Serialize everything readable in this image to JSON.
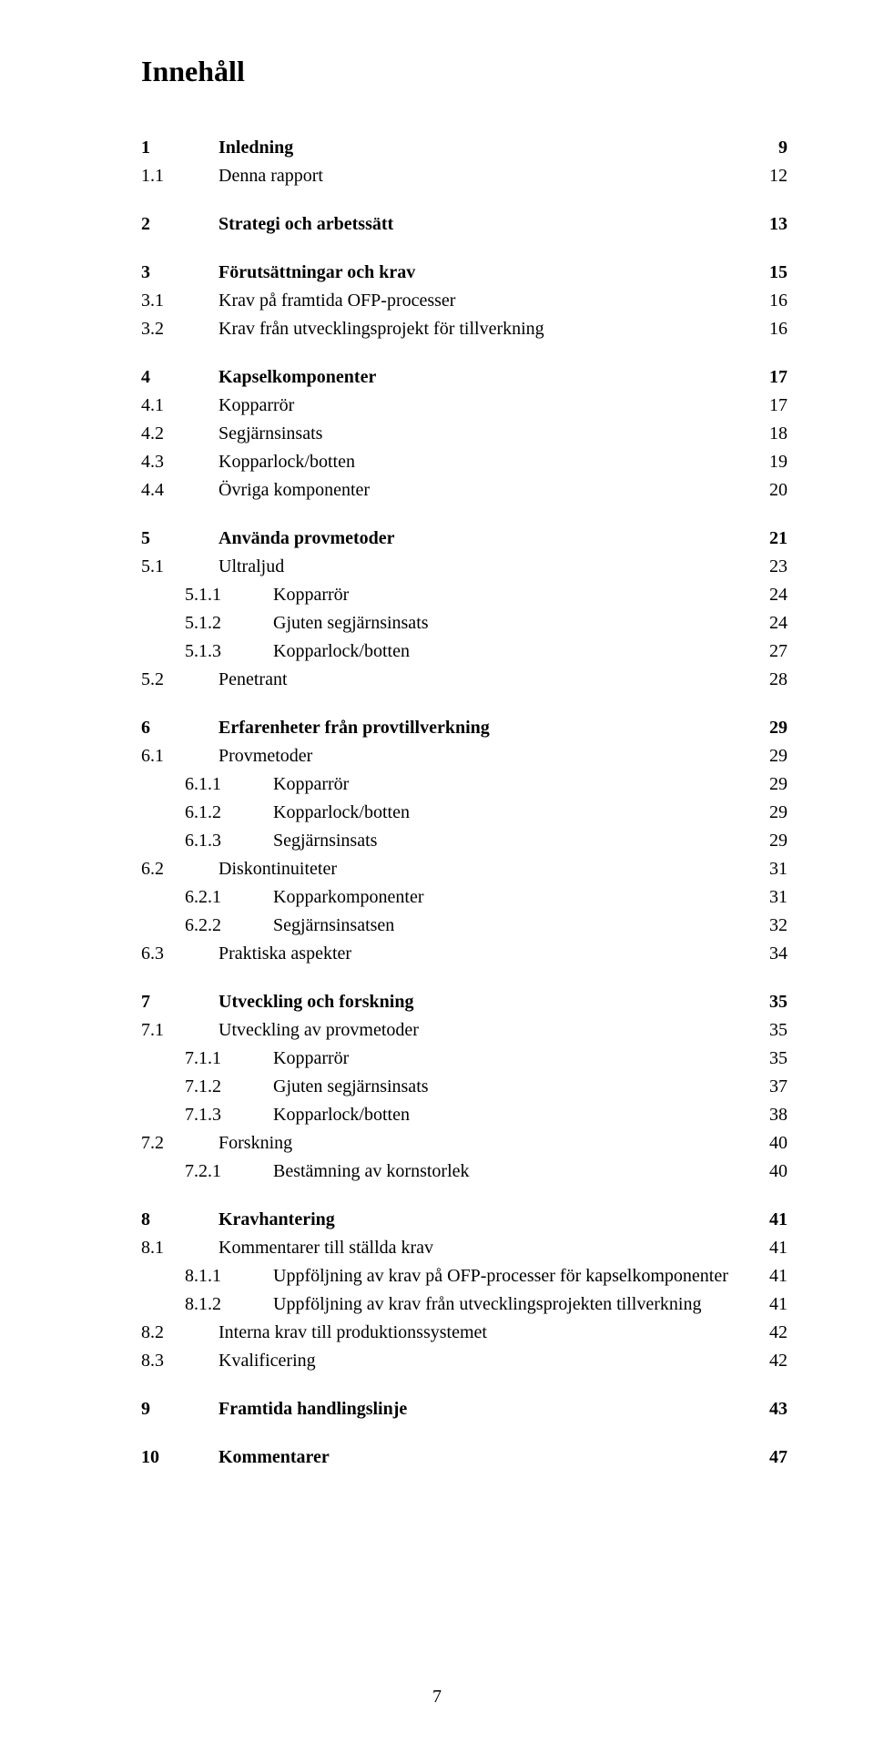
{
  "title": "Innehåll",
  "page_number": "7",
  "sections": [
    {
      "entries": [
        {
          "num": "1",
          "title": "Inledning",
          "page": "9",
          "bold": true,
          "indent": 0
        },
        {
          "num": "1.1",
          "title": "Denna rapport",
          "page": "12",
          "bold": false,
          "indent": 1
        }
      ]
    },
    {
      "entries": [
        {
          "num": "2",
          "title": "Strategi och arbetssätt",
          "page": "13",
          "bold": true,
          "indent": 0
        }
      ]
    },
    {
      "entries": [
        {
          "num": "3",
          "title": "Förutsättningar och krav",
          "page": "15",
          "bold": true,
          "indent": 0
        },
        {
          "num": "3.1",
          "title": "Krav på framtida OFP-processer",
          "page": "16",
          "bold": false,
          "indent": 1
        },
        {
          "num": "3.2",
          "title": "Krav från utvecklingsprojekt för tillverkning",
          "page": "16",
          "bold": false,
          "indent": 1
        }
      ]
    },
    {
      "entries": [
        {
          "num": "4",
          "title": "Kapselkomponenter",
          "page": "17",
          "bold": true,
          "indent": 0
        },
        {
          "num": "4.1",
          "title": "Kopparrör",
          "page": "17",
          "bold": false,
          "indent": 1
        },
        {
          "num": "4.2",
          "title": "Segjärnsinsats",
          "page": "18",
          "bold": false,
          "indent": 1
        },
        {
          "num": "4.3",
          "title": "Kopparlock/botten",
          "page": "19",
          "bold": false,
          "indent": 1
        },
        {
          "num": "4.4",
          "title": "Övriga komponenter",
          "page": "20",
          "bold": false,
          "indent": 1
        }
      ]
    },
    {
      "entries": [
        {
          "num": "5",
          "title": "Använda provmetoder",
          "page": "21",
          "bold": true,
          "indent": 0
        },
        {
          "num": "5.1",
          "title": "Ultraljud",
          "page": "23",
          "bold": false,
          "indent": 1
        },
        {
          "num": "5.1.1",
          "title": "Kopparrör",
          "page": "24",
          "bold": false,
          "indent": 2
        },
        {
          "num": "5.1.2",
          "title": "Gjuten segjärnsinsats",
          "page": "24",
          "bold": false,
          "indent": 2
        },
        {
          "num": "5.1.3",
          "title": "Kopparlock/botten",
          "page": "27",
          "bold": false,
          "indent": 2
        },
        {
          "num": "5.2",
          "title": "Penetrant",
          "page": "28",
          "bold": false,
          "indent": 1
        }
      ]
    },
    {
      "entries": [
        {
          "num": "6",
          "title": "Erfarenheter från provtillverkning",
          "page": "29",
          "bold": true,
          "indent": 0
        },
        {
          "num": "6.1",
          "title": "Provmetoder",
          "page": "29",
          "bold": false,
          "indent": 1
        },
        {
          "num": "6.1.1",
          "title": "Kopparrör",
          "page": "29",
          "bold": false,
          "indent": 2
        },
        {
          "num": "6.1.2",
          "title": "Kopparlock/botten",
          "page": "29",
          "bold": false,
          "indent": 2
        },
        {
          "num": "6.1.3",
          "title": "Segjärnsinsats",
          "page": "29",
          "bold": false,
          "indent": 2
        },
        {
          "num": "6.2",
          "title": "Diskontinuiteter",
          "page": "31",
          "bold": false,
          "indent": 1
        },
        {
          "num": "6.2.1",
          "title": "Kopparkomponenter",
          "page": "31",
          "bold": false,
          "indent": 2
        },
        {
          "num": "6.2.2",
          "title": "Segjärnsinsatsen",
          "page": "32",
          "bold": false,
          "indent": 2
        },
        {
          "num": "6.3",
          "title": "Praktiska aspekter",
          "page": "34",
          "bold": false,
          "indent": 1
        }
      ]
    },
    {
      "entries": [
        {
          "num": "7",
          "title": "Utveckling och forskning",
          "page": "35",
          "bold": true,
          "indent": 0
        },
        {
          "num": "7.1",
          "title": "Utveckling av provmetoder",
          "page": "35",
          "bold": false,
          "indent": 1
        },
        {
          "num": "7.1.1",
          "title": "Kopparrör",
          "page": "35",
          "bold": false,
          "indent": 2
        },
        {
          "num": "7.1.2",
          "title": "Gjuten segjärnsinsats",
          "page": "37",
          "bold": false,
          "indent": 2
        },
        {
          "num": "7.1.3",
          "title": "Kopparlock/botten",
          "page": "38",
          "bold": false,
          "indent": 2
        },
        {
          "num": "7.2",
          "title": "Forskning",
          "page": "40",
          "bold": false,
          "indent": 1
        },
        {
          "num": "7.2.1",
          "title": "Bestämning av kornstorlek",
          "page": "40",
          "bold": false,
          "indent": 2
        }
      ]
    },
    {
      "entries": [
        {
          "num": "8",
          "title": "Kravhantering",
          "page": "41",
          "bold": true,
          "indent": 0
        },
        {
          "num": "8.1",
          "title": "Kommentarer till ställda krav",
          "page": "41",
          "bold": false,
          "indent": 1
        },
        {
          "num": "8.1.1",
          "title": "Uppföljning av krav på OFP-processer för kapselkomponenter",
          "page": "41",
          "bold": false,
          "indent": 2
        },
        {
          "num": "8.1.2",
          "title": "Uppföljning av krav från utvecklingsprojekten tillverkning",
          "page": "41",
          "bold": false,
          "indent": 2
        },
        {
          "num": "8.2",
          "title": "Interna krav till produktionssystemet",
          "page": "42",
          "bold": false,
          "indent": 1
        },
        {
          "num": "8.3",
          "title": "Kvalificering",
          "page": "42",
          "bold": false,
          "indent": 1
        }
      ]
    },
    {
      "entries": [
        {
          "num": "9",
          "title": "Framtida handlingslinje",
          "page": "43",
          "bold": true,
          "indent": 0
        }
      ]
    },
    {
      "entries": [
        {
          "num": "10",
          "title": "Kommentarer",
          "page": "47",
          "bold": true,
          "indent": 0
        }
      ]
    }
  ]
}
